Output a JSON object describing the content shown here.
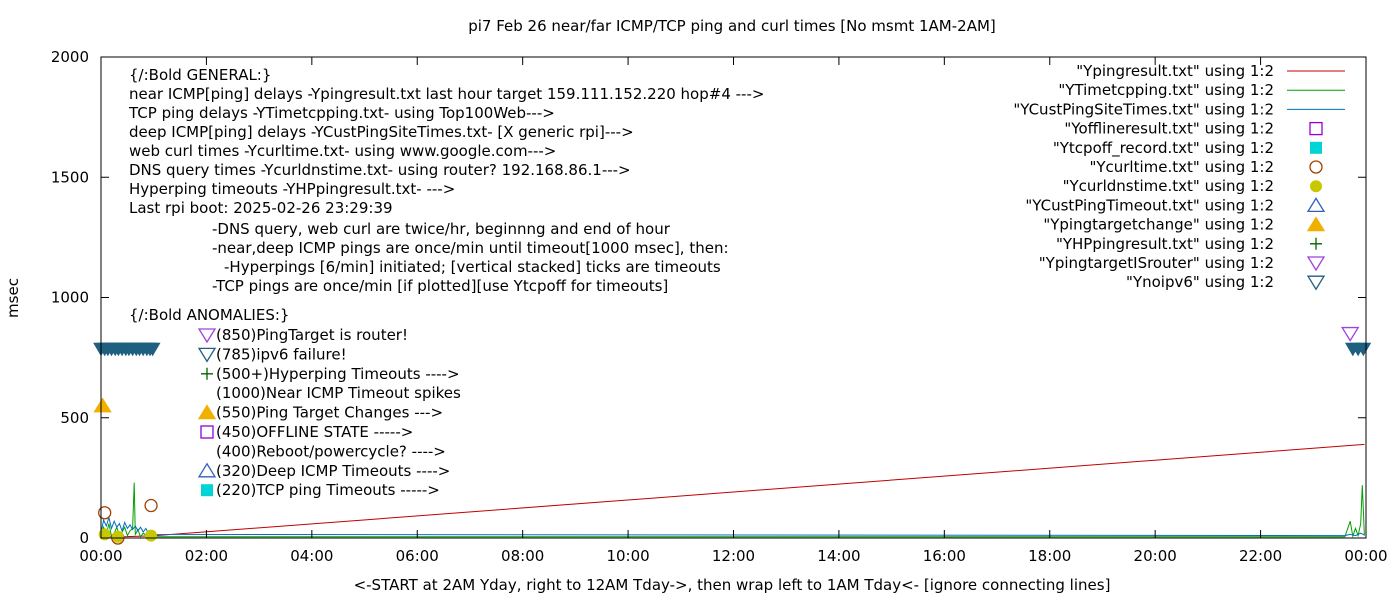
{
  "chart_data": {
    "type": "line",
    "title": "pi7 Feb 26  near/far ICMP/TCP ping and curl times [No msmt 1AM-2AM]",
    "xlabel": "<-START at 2AM Yday, right to 12AM Tday->, then wrap left to 1AM Tday<- [ignore connecting lines]",
    "ylabel": "msec",
    "xlim": [
      0,
      24
    ],
    "ylim": [
      0,
      2000
    ],
    "x_ticks": [
      "00:00",
      "02:00",
      "04:00",
      "06:00",
      "08:00",
      "10:00",
      "12:00",
      "14:00",
      "16:00",
      "18:00",
      "20:00",
      "22:00",
      "00:00"
    ],
    "y_ticks": [
      0,
      500,
      1000,
      1500,
      2000
    ],
    "grid": false,
    "legend_position": "top-right",
    "series": [
      {
        "name": "\"Ypingresult.txt\" using 1:2",
        "style": "line",
        "color": "#c00000",
        "x": [
          0.0,
          0.5,
          1.0,
          23.97
        ],
        "y": [
          5,
          6,
          9,
          389
        ]
      },
      {
        "name": "\"YTimetcpping.txt\" using 1:2",
        "style": "line",
        "color": "#00a000",
        "x": [
          0.0,
          0.05,
          0.1,
          0.15,
          0.2,
          0.25,
          0.3,
          0.35,
          0.4,
          0.45,
          0.5,
          0.55,
          0.6,
          0.63,
          0.65,
          0.7,
          0.75,
          0.8,
          0.9,
          1.0,
          23.6,
          23.7,
          23.75,
          23.8,
          23.85,
          23.9,
          23.93,
          23.97
        ],
        "y": [
          5,
          45,
          15,
          60,
          8,
          20,
          45,
          10,
          25,
          45,
          10,
          30,
          40,
          230,
          15,
          35,
          5,
          20,
          5,
          5,
          5,
          70,
          8,
          40,
          10,
          60,
          220,
          10
        ]
      },
      {
        "name": "\"YCustPingSiteTimes.txt\" using 1:2",
        "style": "line",
        "color": "#0070c0",
        "x": [
          0.0,
          0.05,
          0.1,
          0.15,
          0.2,
          0.25,
          0.3,
          0.35,
          0.4,
          0.45,
          0.5,
          0.55,
          0.6,
          0.65,
          0.7,
          0.75,
          0.8,
          0.85,
          0.9,
          0.95,
          1.0,
          23.6,
          23.7,
          23.8,
          23.9,
          23.97
        ],
        "y": [
          20,
          75,
          50,
          85,
          40,
          70,
          45,
          60,
          30,
          65,
          40,
          55,
          35,
          50,
          30,
          45,
          25,
          40,
          20,
          25,
          15,
          10,
          15,
          10,
          20,
          12
        ]
      },
      {
        "name": "\"Yofflineresult.txt\" using 1:2",
        "style": "square-open",
        "color": "#9400d3",
        "x": [],
        "y": []
      },
      {
        "name": "\"Ytcpoff_record.txt\" using 1:2",
        "style": "square-filled",
        "color": "#00d4d4",
        "x": [],
        "y": []
      },
      {
        "name": "\"Ycurltime.txt\" using 1:2",
        "style": "circle-open",
        "color": "#a04000",
        "x": [
          0.07,
          0.32,
          0.95
        ],
        "y": [
          105,
          0,
          135
        ]
      },
      {
        "name": "\"Ycurldnstime.txt\" using 1:2",
        "style": "circle-filled",
        "color": "#c8c800",
        "x": [
          0.07,
          0.32,
          0.95
        ],
        "y": [
          15,
          5,
          10
        ]
      },
      {
        "name": "\"YCustPingTimeout.txt\" using 1:2",
        "style": "triangle-up-open",
        "color": "#3060c0",
        "x": [],
        "y": []
      },
      {
        "name": "\"Ypingtargetchange\" using 1:2",
        "style": "triangle-up-filled",
        "color": "#f0b000",
        "x": [
          0.03
        ],
        "y": [
          550
        ]
      },
      {
        "name": "\"YHPpingresult.txt\" using 1:2",
        "style": "plus",
        "color": "#006400",
        "x": [],
        "y": []
      },
      {
        "name": "\"YpingtargetISrouter\" using 1:2",
        "style": "triangle-down-open",
        "color": "#a040e0",
        "x": [
          23.7
        ],
        "y": [
          850
        ]
      },
      {
        "name": "\"Ynoipv6\" using 1:2",
        "style": "triangle-down-open",
        "color": "#1f5f80",
        "x": [
          0.0,
          0.07,
          0.13,
          0.2,
          0.27,
          0.33,
          0.4,
          0.47,
          0.53,
          0.6,
          0.67,
          0.73,
          0.8,
          0.87,
          0.93,
          0.98,
          23.75,
          23.85,
          23.95
        ],
        "y": [
          785,
          785,
          785,
          785,
          785,
          785,
          785,
          785,
          785,
          785,
          785,
          785,
          785,
          785,
          785,
          785,
          785,
          785,
          785
        ]
      }
    ],
    "annotations": {
      "general": [
        "{/:Bold GENERAL:}",
        "near ICMP[ping] delays -Ypingresult.txt last hour target 159.111.152.220 hop#4 --->",
        "TCP ping delays -YTimetcpping.txt- using Top100Web--->",
        "deep ICMP[ping] delays -YCustPingSiteTimes.txt- [X generic rpi]--->",
        "web curl times -Ycurltime.txt- using www.google.com--->",
        "DNS query times -Ycurldnstime.txt- using router? 192.168.86.1--->",
        "Hyperping timeouts -YHPpingresult.txt- --->",
        "Last rpi boot: 2025-02-26 23:29:39"
      ],
      "notes": [
        "-DNS query, web curl are twice/hr, beginnng and end of hour",
        "-near,deep ICMP pings are once/min until timeout[1000 msec], then:",
        "-Hyperpings [6/min] initiated; [vertical stacked] ticks are timeouts",
        "-TCP pings are once/min [if plotted][use Ytcpoff for timeouts]"
      ],
      "anomalies_title": "{/:Bold ANOMALIES:}",
      "anomalies": [
        {
          "symbol": "triangle-down-open",
          "color": "#a040e0",
          "text": "(850)PingTarget is router!"
        },
        {
          "symbol": "triangle-down-open",
          "color": "#1f5f80",
          "text": "(785)ipv6 failure!"
        },
        {
          "symbol": "plus",
          "color": "#006400",
          "text": "(500+)Hyperping Timeouts ---->"
        },
        {
          "symbol": "none",
          "color": "#000000",
          "text": "(1000)Near ICMP Timeout spikes"
        },
        {
          "symbol": "triangle-up-filled",
          "color": "#f0b000",
          "text": "(550)Ping Target Changes --->"
        },
        {
          "symbol": "square-open",
          "color": "#9400d3",
          "text": "(450)OFFLINE STATE ----->"
        },
        {
          "symbol": "none",
          "color": "#000000",
          "text": "(400)Reboot/powercycle? ---->"
        },
        {
          "symbol": "triangle-up-open",
          "color": "#3060c0",
          "text": "(320)Deep ICMP Timeouts ---->"
        },
        {
          "symbol": "square-filled",
          "color": "#00d4d4",
          "text": "(220)TCP ping Timeouts ----->"
        }
      ]
    }
  }
}
